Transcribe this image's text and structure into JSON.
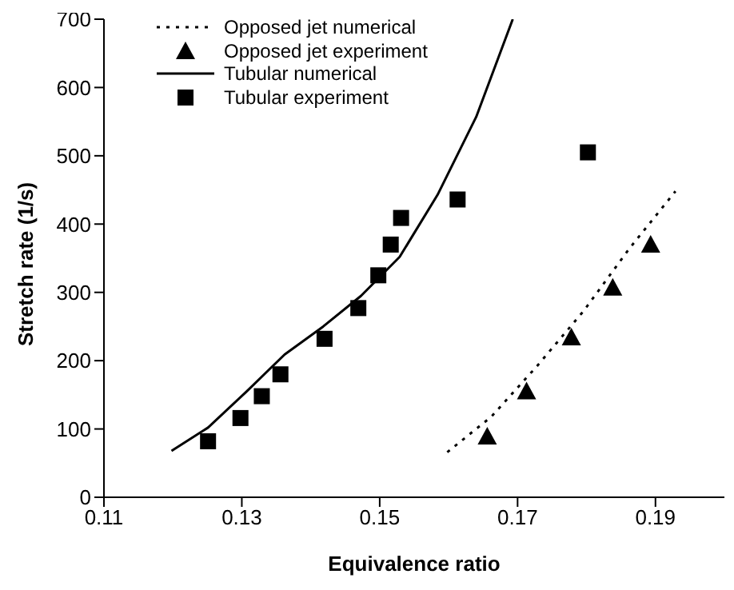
{
  "chart_data": {
    "type": "scatter",
    "xlabel": "Equivalence ratio",
    "ylabel": "Stretch rate (1/s)",
    "xlim": [
      0.11,
      0.2
    ],
    "xticks": [
      0.11,
      0.13,
      0.15,
      0.17,
      0.19
    ],
    "ylim": [
      0,
      700
    ],
    "yticks": [
      0,
      100,
      200,
      300,
      400,
      500,
      600,
      700
    ],
    "grid": false,
    "legend": "top left",
    "series": [
      {
        "name": "Opposed jet numerical",
        "type": "line",
        "line_style": "dotted",
        "marker": "none",
        "color": "#000000",
        "x": [
          0.1598,
          0.1662,
          0.1729,
          0.1796,
          0.1862,
          0.1929
        ],
        "values": [
          66,
          118,
          193,
          273,
          364,
          448
        ]
      },
      {
        "name": "Opposed jet experiment",
        "marker": "triangle",
        "color": "#000000",
        "x": [
          0.1656,
          0.1713,
          0.1778,
          0.1838,
          0.1893
        ],
        "values": [
          89,
          155,
          234,
          307,
          370
        ]
      },
      {
        "name": "Tubular numerical",
        "type": "line",
        "line_style": "solid",
        "marker": "none",
        "color": "#000000",
        "x": [
          0.1198,
          0.1251,
          0.1307,
          0.1362,
          0.1418,
          0.1473,
          0.1529,
          0.1584,
          0.164,
          0.1693
        ],
        "values": [
          68,
          102,
          155,
          209,
          250,
          295,
          352,
          443,
          557,
          700
        ]
      },
      {
        "name": "Tubular experiment",
        "marker": "square",
        "color": "#000000",
        "x": [
          0.1251,
          0.1298,
          0.1329,
          0.1356,
          0.142,
          0.1469,
          0.1498,
          0.1516,
          0.1531,
          0.1613,
          0.1802
        ],
        "values": [
          82,
          116,
          148,
          180,
          232,
          277,
          325,
          370,
          409,
          436,
          505
        ]
      }
    ]
  }
}
